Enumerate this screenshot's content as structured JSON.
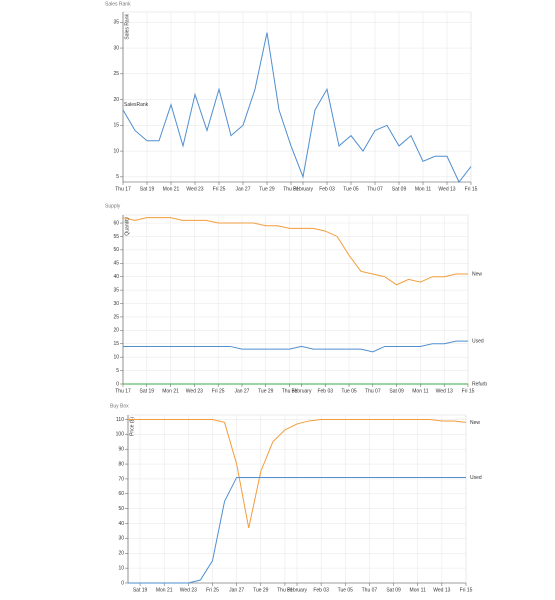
{
  "chart_data": [
    {
      "type": "line",
      "title": "Sales Rank",
      "ylabel": "Sales Rank",
      "legend": "line-start",
      "x": [
        "Jan 17",
        "Jan 18",
        "Jan 19",
        "Jan 20",
        "Jan 21",
        "Jan 22",
        "Jan 23",
        "Jan 24",
        "Jan 25",
        "Jan 26",
        "Jan 27",
        "Jan 28",
        "Jan 29",
        "Jan 30",
        "Jan 31",
        "Feb 01",
        "Feb 02",
        "Feb 03",
        "Feb 04",
        "Feb 05",
        "Feb 06",
        "Feb 07",
        "Feb 08",
        "Feb 09",
        "Feb 10",
        "Feb 11",
        "Feb 12",
        "Feb 13",
        "Feb 14",
        "Feb 15"
      ],
      "series": [
        {
          "name": "SalesRank",
          "color": "#4f8fd0",
          "values": [
            18,
            14,
            12,
            12,
            19,
            11,
            21,
            14,
            22,
            13,
            15,
            22,
            33,
            18,
            11,
            5,
            18,
            22,
            11,
            13,
            10,
            14,
            15,
            11,
            13,
            8,
            9,
            9,
            4,
            7
          ]
        }
      ],
      "xlim": [
        "Jan 17",
        "Feb 15"
      ],
      "ylim": [
        4,
        37
      ],
      "xticks": [
        {
          "value": "Jan 17",
          "label": "Thu 17"
        },
        {
          "value": "Jan 19",
          "label": "Sat 19"
        },
        {
          "value": "Jan 21",
          "label": "Mon 21"
        },
        {
          "value": "Jan 23",
          "label": "Wed 23"
        },
        {
          "value": "Jan 25",
          "label": "Fri 25"
        },
        {
          "value": "Jan 27",
          "label": "Jan 27"
        },
        {
          "value": "Jan 29",
          "label": "Tue 29"
        },
        {
          "value": "Jan 31",
          "label": "Thu 31"
        },
        {
          "value": "Feb 01",
          "label": "February"
        },
        {
          "value": "Feb 03",
          "label": "Feb 03"
        },
        {
          "value": "Feb 05",
          "label": "Tue 05"
        },
        {
          "value": "Feb 07",
          "label": "Thu 07"
        },
        {
          "value": "Feb 09",
          "label": "Sat 09"
        },
        {
          "value": "Feb 11",
          "label": "Mon 11"
        },
        {
          "value": "Feb 13",
          "label": "Wed 13"
        },
        {
          "value": "Feb 15",
          "label": "Fri 15"
        }
      ],
      "yticks": [
        5,
        10,
        15,
        20,
        25,
        30,
        35
      ],
      "grid": true
    },
    {
      "type": "line",
      "title": "Supply",
      "ylabel": "Quantity",
      "legend": "line-end",
      "x": [
        "Jan 17",
        "Jan 18",
        "Jan 19",
        "Jan 20",
        "Jan 21",
        "Jan 22",
        "Jan 23",
        "Jan 24",
        "Jan 25",
        "Jan 26",
        "Jan 27",
        "Jan 28",
        "Jan 29",
        "Jan 30",
        "Jan 31",
        "Feb 01",
        "Feb 02",
        "Feb 03",
        "Feb 04",
        "Feb 05",
        "Feb 06",
        "Feb 07",
        "Feb 08",
        "Feb 09",
        "Feb 10",
        "Feb 11",
        "Feb 12",
        "Feb 13",
        "Feb 14",
        "Feb 15"
      ],
      "series": [
        {
          "name": "New",
          "color": "#f39c3c",
          "values": [
            62,
            61,
            62,
            62,
            62,
            61,
            61,
            61,
            60,
            60,
            60,
            60,
            59,
            59,
            58,
            58,
            58,
            57,
            55,
            48,
            42,
            41,
            40,
            37,
            39,
            38,
            40,
            40,
            41,
            41
          ]
        },
        {
          "name": "Used",
          "color": "#4f8fd0",
          "values": [
            14,
            14,
            14,
            14,
            14,
            14,
            14,
            14,
            14,
            14,
            13,
            13,
            13,
            13,
            13,
            14,
            13,
            13,
            13,
            13,
            13,
            12,
            14,
            14,
            14,
            14,
            15,
            15,
            16,
            16
          ]
        },
        {
          "name": "Refurb",
          "color": "#3aa84a",
          "values": [
            0,
            0,
            0,
            0,
            0,
            0,
            0,
            0,
            0,
            0,
            0,
            0,
            0,
            0,
            0,
            0,
            0,
            0,
            0,
            0,
            0,
            0,
            0,
            0,
            0,
            0,
            0,
            0,
            0,
            0
          ]
        }
      ],
      "xlim": [
        "Jan 17",
        "Feb 15"
      ],
      "ylim": [
        0,
        63
      ],
      "xticks": [
        {
          "value": "Jan 17",
          "label": "Thu 17"
        },
        {
          "value": "Jan 19",
          "label": "Sat 19"
        },
        {
          "value": "Jan 21",
          "label": "Mon 21"
        },
        {
          "value": "Jan 23",
          "label": "Wed 23"
        },
        {
          "value": "Jan 25",
          "label": "Fri 25"
        },
        {
          "value": "Jan 27",
          "label": "Jan 27"
        },
        {
          "value": "Jan 29",
          "label": "Tue 29"
        },
        {
          "value": "Jan 31",
          "label": "Thu 31"
        },
        {
          "value": "Feb 01",
          "label": "February"
        },
        {
          "value": "Feb 03",
          "label": "Feb 03"
        },
        {
          "value": "Feb 05",
          "label": "Tue 05"
        },
        {
          "value": "Feb 07",
          "label": "Thu 07"
        },
        {
          "value": "Feb 09",
          "label": "Sat 09"
        },
        {
          "value": "Feb 11",
          "label": "Mon 11"
        },
        {
          "value": "Feb 13",
          "label": "Wed 13"
        },
        {
          "value": "Feb 15",
          "label": "Fri 15"
        }
      ],
      "yticks": [
        0,
        5,
        10,
        15,
        20,
        25,
        30,
        35,
        40,
        45,
        50,
        55,
        60
      ],
      "grid": true
    },
    {
      "type": "line",
      "title": "Buy Box",
      "ylabel": "Price ($)",
      "legend": "line-end",
      "x": [
        "Jan 18",
        "Jan 19",
        "Jan 20",
        "Jan 21",
        "Jan 22",
        "Jan 23",
        "Jan 24",
        "Jan 25",
        "Jan 26",
        "Jan 27",
        "Jan 28",
        "Jan 29",
        "Jan 30",
        "Jan 31",
        "Feb 01",
        "Feb 02",
        "Feb 03",
        "Feb 04",
        "Feb 05",
        "Feb 06",
        "Feb 07",
        "Feb 08",
        "Feb 09",
        "Feb 10",
        "Feb 11",
        "Feb 12",
        "Feb 13",
        "Feb 14",
        "Feb 15"
      ],
      "series": [
        {
          "name": "New",
          "color": "#f39c3c",
          "values": [
            110,
            110,
            110,
            110,
            110,
            110,
            110,
            110,
            108,
            80,
            37,
            75,
            95,
            103,
            107,
            109,
            110,
            110,
            110,
            110,
            110,
            110,
            110,
            110,
            110,
            110,
            109,
            109,
            108
          ]
        },
        {
          "name": "Used",
          "color": "#4f8fd0",
          "values": [
            0,
            0,
            0,
            0,
            0,
            0,
            2,
            15,
            55,
            71,
            71,
            71,
            71,
            71,
            71,
            71,
            71,
            71,
            71,
            71,
            71,
            71,
            71,
            71,
            71,
            71,
            71,
            71,
            71
          ]
        }
      ],
      "xlim": [
        "Jan 18",
        "Feb 15"
      ],
      "ylim": [
        0,
        113
      ],
      "xticks": [
        {
          "value": "Jan 19",
          "label": "Sat 19"
        },
        {
          "value": "Jan 21",
          "label": "Mon 21"
        },
        {
          "value": "Jan 23",
          "label": "Wed 23"
        },
        {
          "value": "Jan 25",
          "label": "Fri 25"
        },
        {
          "value": "Jan 27",
          "label": "Jan 27"
        },
        {
          "value": "Jan 29",
          "label": "Tue 29"
        },
        {
          "value": "Jan 31",
          "label": "Thu 31"
        },
        {
          "value": "Feb 01",
          "label": "February"
        },
        {
          "value": "Feb 03",
          "label": "Feb 03"
        },
        {
          "value": "Feb 05",
          "label": "Tue 05"
        },
        {
          "value": "Feb 07",
          "label": "Thu 07"
        },
        {
          "value": "Feb 09",
          "label": "Sat 09"
        },
        {
          "value": "Feb 11",
          "label": "Mon 11"
        },
        {
          "value": "Feb 13",
          "label": "Wed 13"
        },
        {
          "value": "Feb 15",
          "label": "Fri 15"
        }
      ],
      "yticks": [
        0,
        10,
        20,
        30,
        40,
        50,
        60,
        70,
        80,
        90,
        100,
        110
      ],
      "grid": true
    }
  ]
}
